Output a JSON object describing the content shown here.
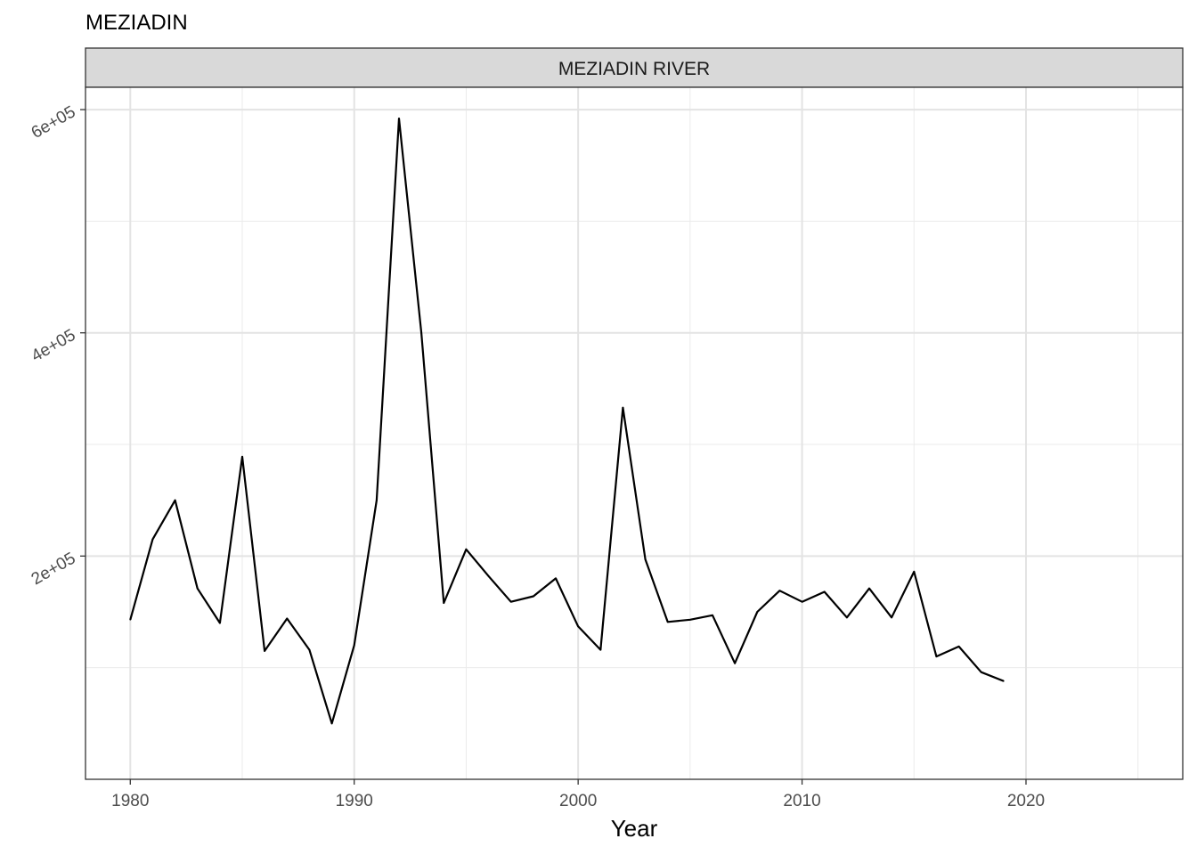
{
  "plot_title": "MEZIADIN",
  "chart_data": {
    "type": "line",
    "title": "MEZIADIN",
    "facet_label": "MEZIADIN RIVER",
    "xlabel": "Year",
    "ylabel": "",
    "xlim": [
      1978,
      2027
    ],
    "ylim": [
      0,
      620000
    ],
    "x_ticks": [
      1980,
      1990,
      2000,
      2010,
      2020
    ],
    "x_tick_labels": [
      "1980",
      "1990",
      "2000",
      "2010",
      "2020"
    ],
    "y_ticks": [
      200000,
      400000,
      600000
    ],
    "y_tick_labels": [
      "2e+05",
      "4e+05",
      "6e+05"
    ],
    "grid": true,
    "legend": "none",
    "series": [
      {
        "color": "#000000",
        "x": [
          1980,
          1981,
          1982,
          1983,
          1984,
          1985,
          1986,
          1987,
          1988,
          1989,
          1990,
          1991,
          1992,
          1993,
          1994,
          1995,
          1996,
          1997,
          1998,
          1999,
          2000,
          2001,
          2002,
          2003,
          2004,
          2005,
          2006,
          2007,
          2008,
          2009,
          2010,
          2011,
          2012,
          2013,
          2014,
          2015,
          2016,
          2017,
          2018,
          2019
        ],
        "values": [
          143000,
          215000,
          250000,
          171000,
          140000,
          289000,
          115000,
          144000,
          116000,
          50000,
          120000,
          250000,
          592000,
          400000,
          158000,
          206000,
          182000,
          159000,
          164000,
          180000,
          137000,
          116000,
          333000,
          197000,
          141000,
          143000,
          147000,
          104000,
          150000,
          169000,
          159000,
          168000,
          145000,
          171000,
          145000,
          186000,
          110000,
          119000,
          96000,
          88000
        ]
      }
    ]
  }
}
